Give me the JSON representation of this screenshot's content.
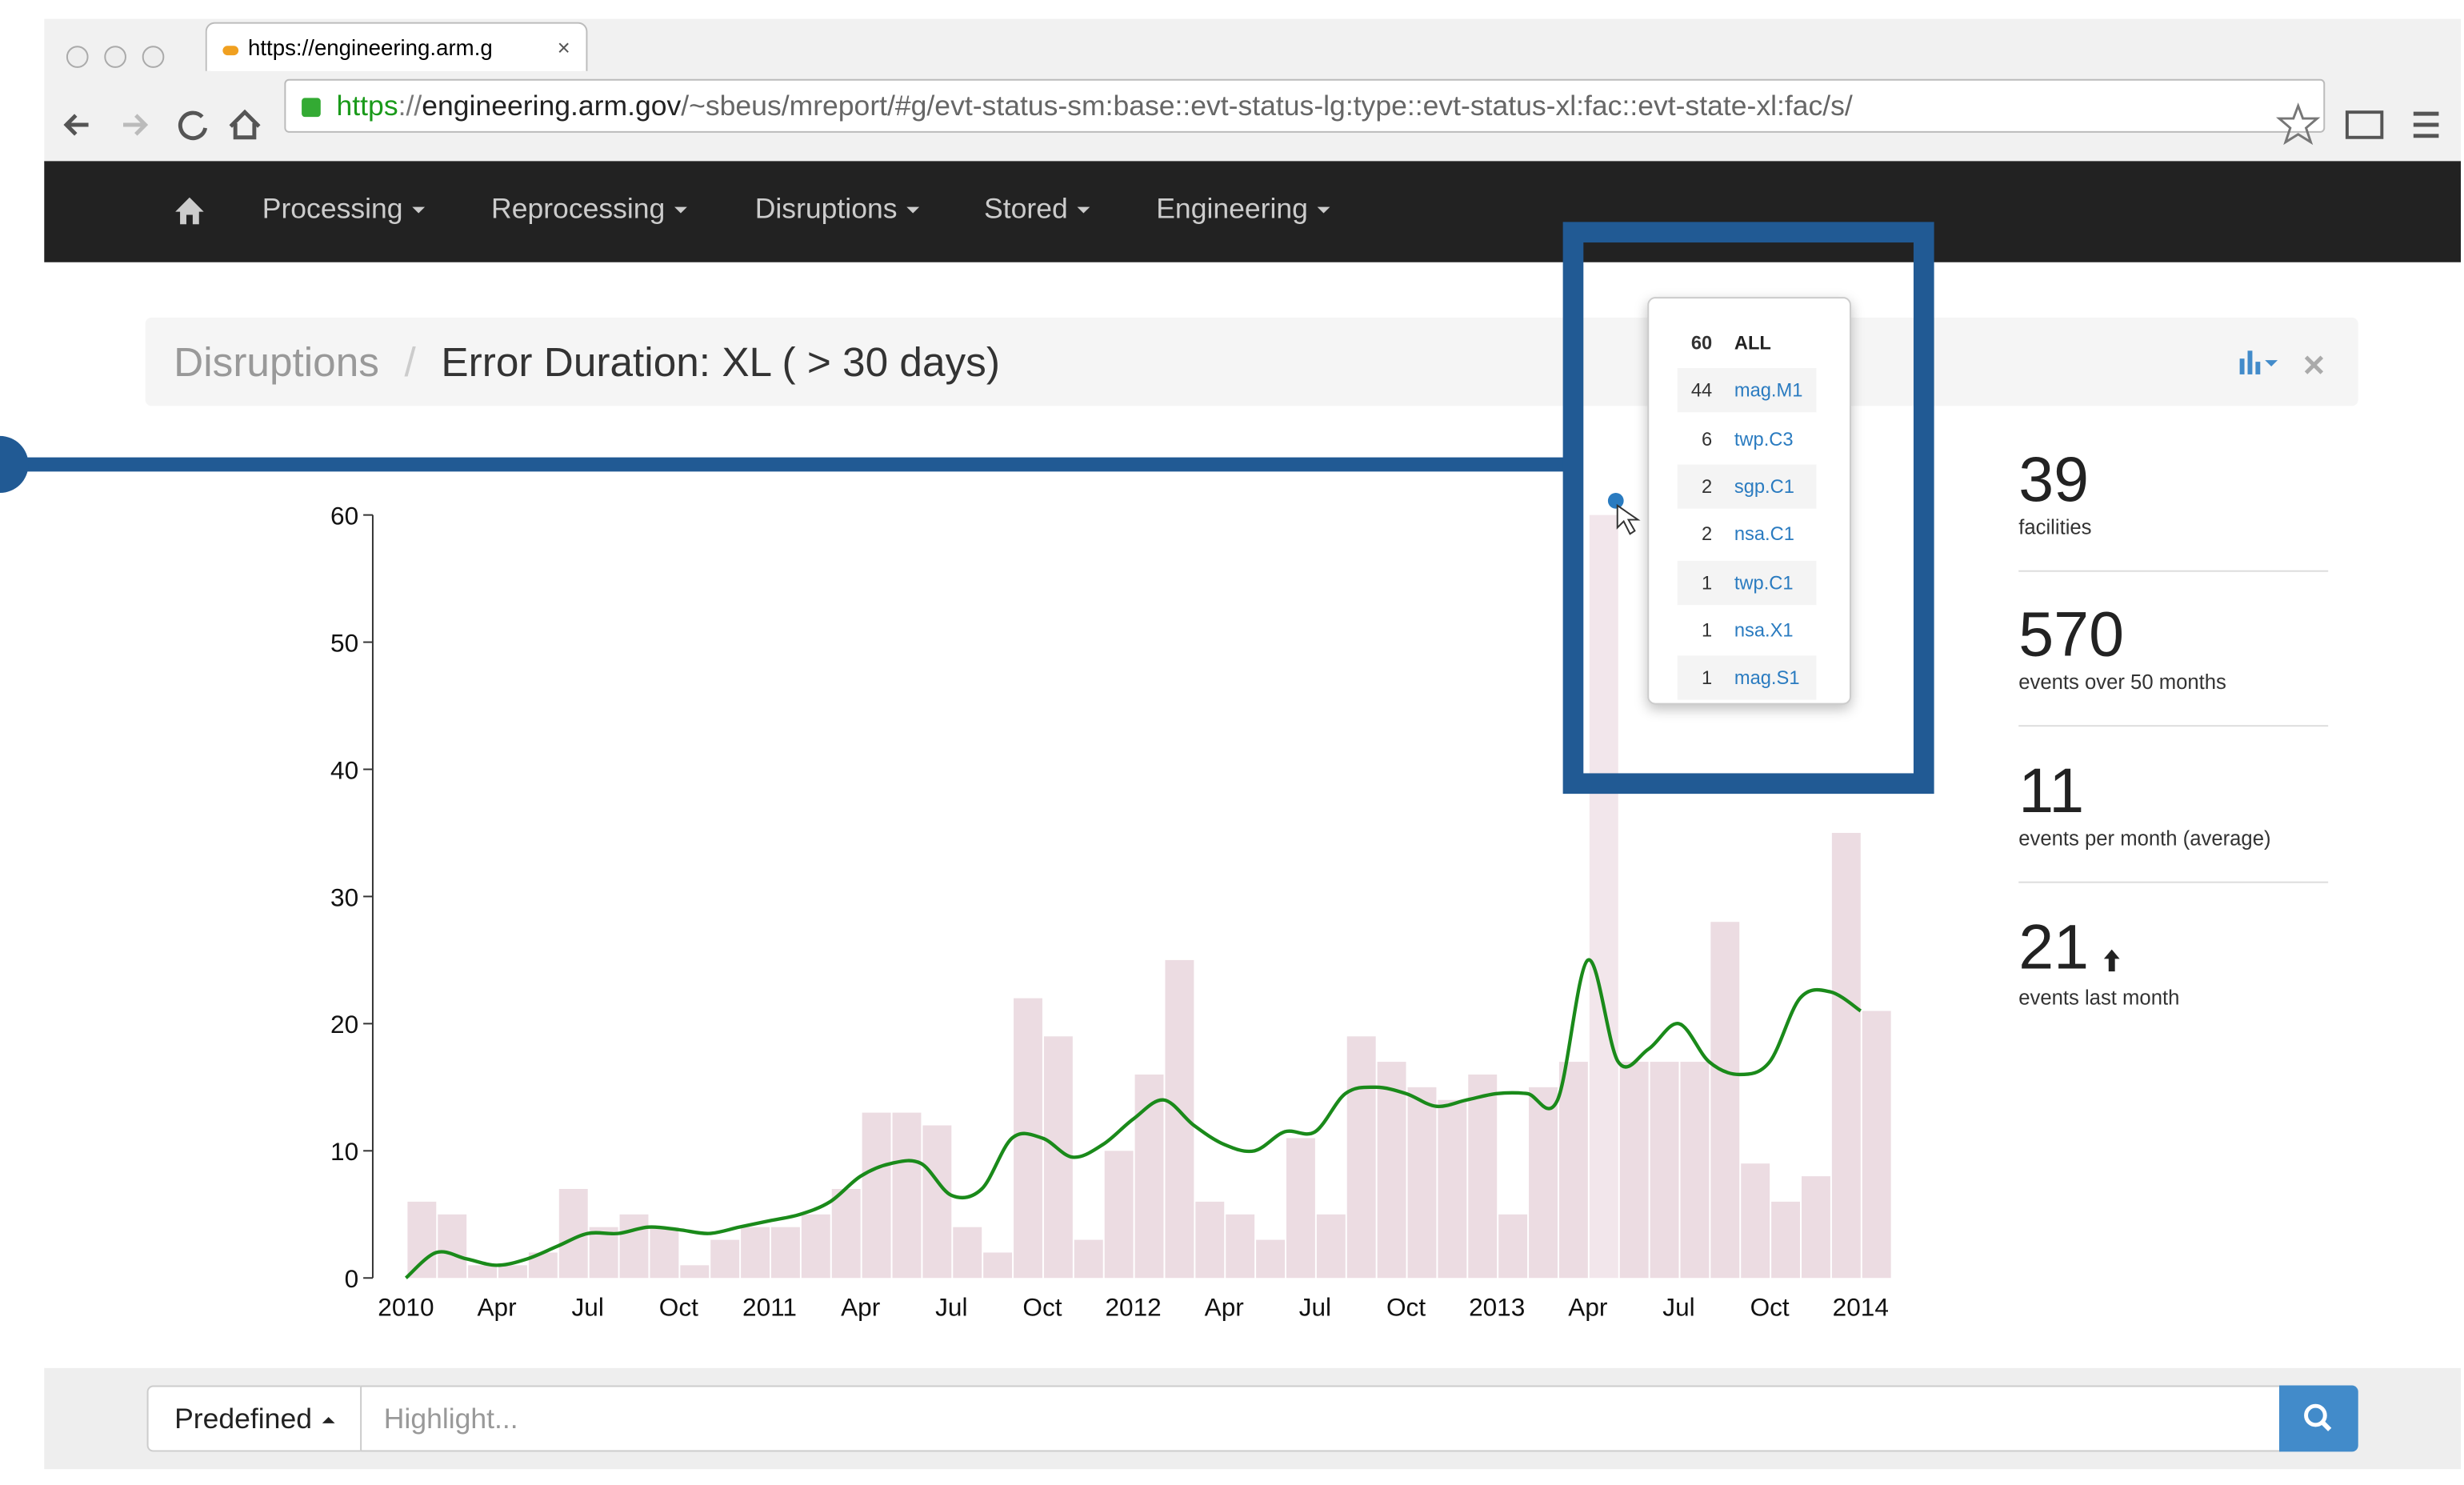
{
  "browser": {
    "tab_title": "https://engineering.arm.g",
    "url": {
      "scheme": "https",
      "separator": "://",
      "host": "engineering.arm.gov",
      "path": "/~sbeus/mreport/#g/evt-status-sm:base::evt-status-lg:type::evt-status-xl:fac::evt-state-xl:fac/s/"
    }
  },
  "nav": {
    "items": [
      "Processing",
      "Reprocessing",
      "Disruptions",
      "Stored",
      "Engineering"
    ]
  },
  "breadcrumb": {
    "parent": "Disruptions",
    "separator": "/",
    "current": "Error Duration: XL ( > 30 days)"
  },
  "chart_data": {
    "type": "bar",
    "categories": [
      "2010",
      null,
      null,
      "Apr",
      null,
      null,
      "Jul",
      null,
      null,
      "Oct",
      null,
      null,
      "2011",
      null,
      null,
      "Apr",
      null,
      null,
      "Jul",
      null,
      null,
      "Oct",
      null,
      null,
      "2012",
      null,
      null,
      "Apr",
      null,
      null,
      "Jul",
      null,
      null,
      "Oct",
      null,
      null,
      "2013",
      null,
      null,
      "Apr",
      null,
      null,
      "Jul",
      null,
      null,
      "Oct",
      null,
      null,
      "2014"
    ],
    "values": [
      6,
      5,
      1,
      1,
      2,
      7,
      4,
      5,
      4,
      1,
      3,
      4,
      4,
      5,
      7,
      13,
      13,
      12,
      4,
      2,
      22,
      19,
      3,
      10,
      16,
      25,
      6,
      5,
      3,
      11,
      5,
      19,
      17,
      15,
      14,
      16,
      5,
      15,
      17,
      60,
      17,
      17,
      17,
      28,
      9,
      6,
      8,
      35,
      21
    ],
    "color": "#e9d6dd",
    "trend_values": [
      0,
      2,
      1.5,
      1,
      1.5,
      2.5,
      3.5,
      3.5,
      4,
      3.8,
      3.5,
      4,
      4.5,
      5,
      6,
      8,
      9,
      9,
      6.5,
      7,
      11,
      11,
      9.5,
      10.5,
      12.5,
      14,
      12,
      10.5,
      10,
      11.5,
      11.5,
      14.5,
      15,
      14.5,
      13.5,
      14,
      14.5,
      14.5,
      14,
      25,
      17,
      18,
      20,
      17,
      16,
      17,
      22,
      22.5,
      21
    ],
    "trend_color": "#1a8a1a",
    "ylim": [
      0,
      60
    ],
    "yticks": [
      0,
      10,
      20,
      30,
      40,
      50,
      60
    ],
    "grid": false
  },
  "popup": {
    "rows": [
      {
        "count": 60,
        "name": "ALL"
      },
      {
        "count": 44,
        "name": "mag.M1"
      },
      {
        "count": 6,
        "name": "twp.C3"
      },
      {
        "count": 2,
        "name": "sgp.C1"
      },
      {
        "count": 2,
        "name": "nsa.C1"
      },
      {
        "count": 1,
        "name": "twp.C1"
      },
      {
        "count": 1,
        "name": "nsa.X1"
      },
      {
        "count": 1,
        "name": "mag.S1"
      }
    ]
  },
  "stats": [
    {
      "value": 39,
      "label": "facilities"
    },
    {
      "value": 570,
      "label": "events over 50 months"
    },
    {
      "value": 11,
      "label": "events per month (average)"
    },
    {
      "value": 21,
      "label": "events last month"
    }
  ],
  "search": {
    "button": "Predefined",
    "placeholder": "Highlight..."
  }
}
